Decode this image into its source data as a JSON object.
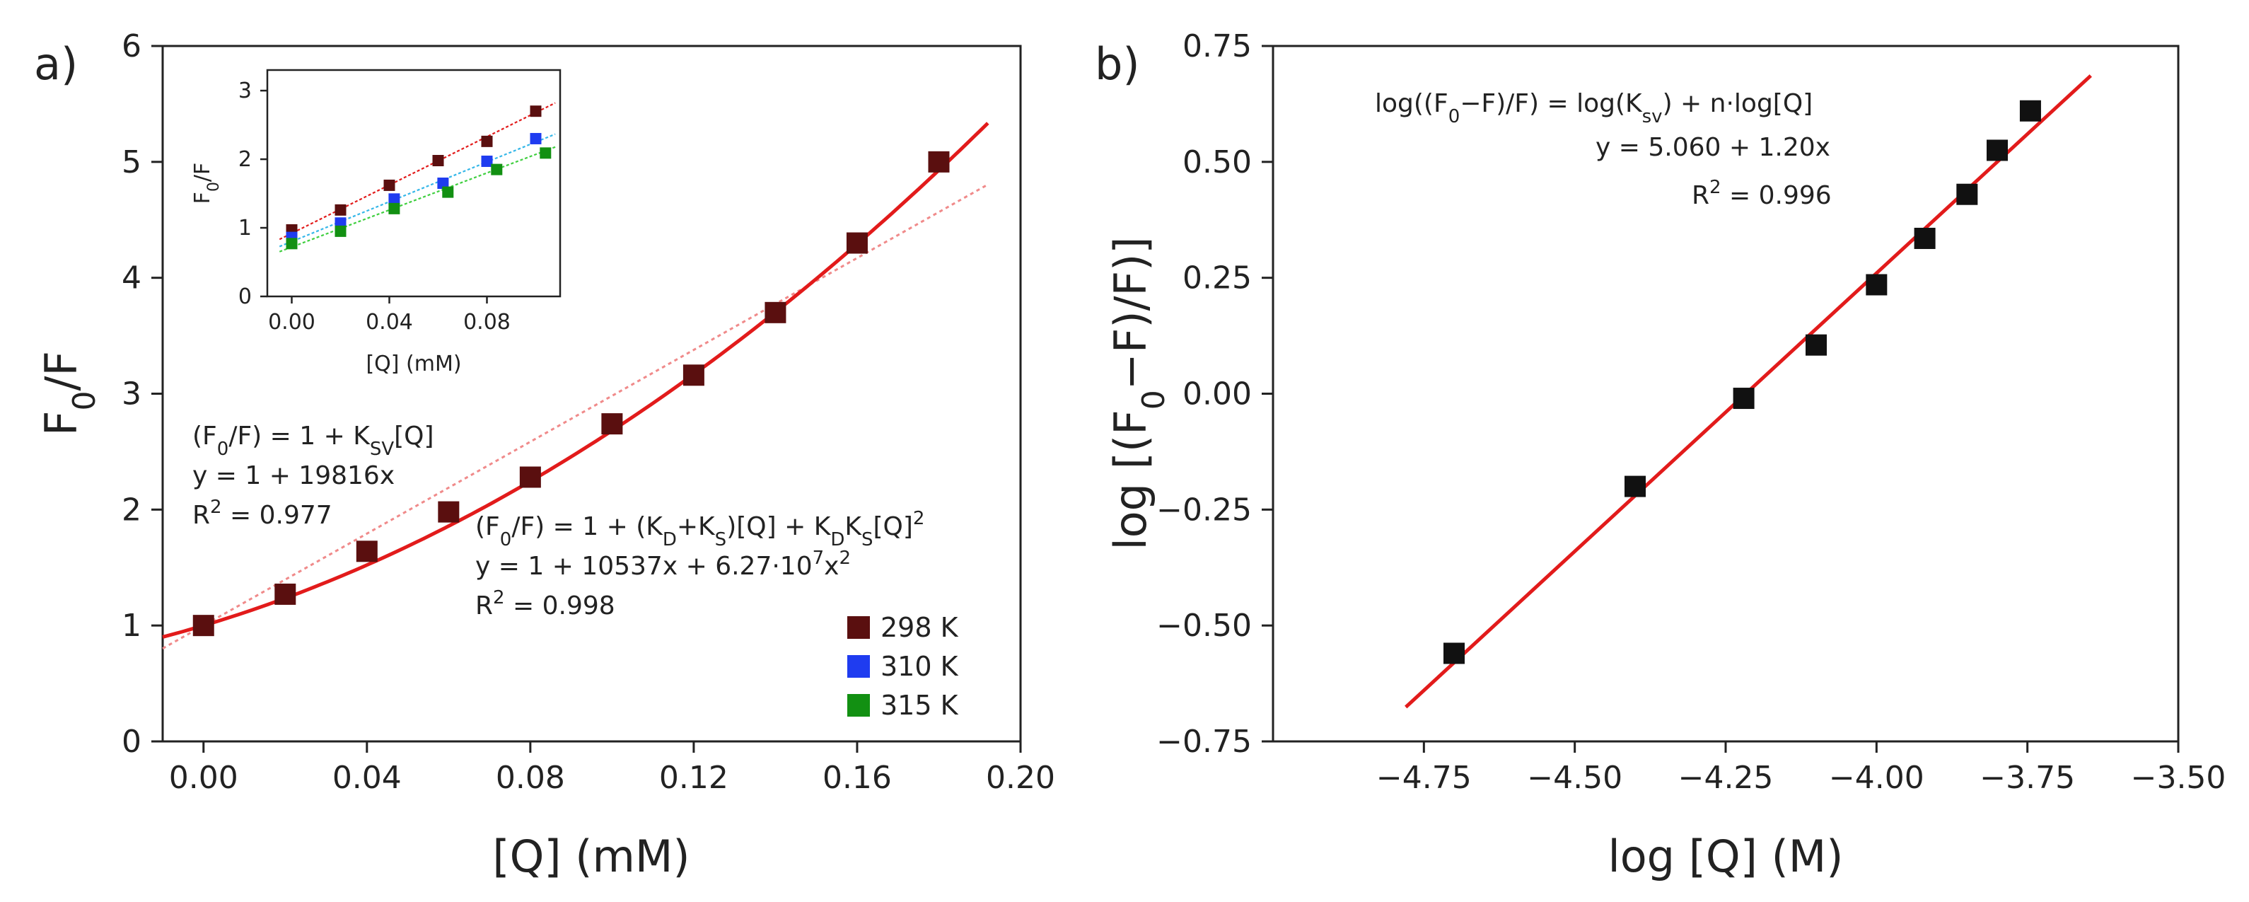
{
  "colors": {
    "fit_line": "#e21b1b",
    "linear_fit": "#f08a8a",
    "s298": "#5a0f0f",
    "s310": "#1f3cf0",
    "s315": "#129012",
    "inset_fit_310": "#35b7e8",
    "inset_fit_315": "#3fcf3f",
    "panel_b_marker": "#111111",
    "axis": "#222222"
  },
  "chart_data": [
    {
      "panel_label": "a)",
      "type": "scatter",
      "xlabel": "[Q] (mM)",
      "ylabel": "F0/F",
      "xlim": [
        -0.01,
        0.2
      ],
      "ylim": [
        0,
        6
      ],
      "x_ticks": [
        "0.00",
        "0.04",
        "0.08",
        "0.12",
        "0.16",
        "0.20"
      ],
      "y_ticks": [
        "0",
        "1",
        "2",
        "3",
        "4",
        "5",
        "6"
      ],
      "series": [
        {
          "name": "298 K",
          "x": [
            0.0,
            0.02,
            0.04,
            0.06,
            0.08,
            0.1,
            0.12,
            0.14,
            0.16,
            0.18
          ],
          "y": [
            1.0,
            1.27,
            1.64,
            1.98,
            2.28,
            2.74,
            3.16,
            3.7,
            4.3,
            5.0
          ]
        }
      ],
      "fits": [
        {
          "kind": "quadratic",
          "equation": "y = 1 + 10537x + 6.27·10⁷x²",
          "a": 1,
          "b": 10.537,
          "c": 62.7,
          "x_range": [
            -0.01,
            0.192
          ]
        },
        {
          "kind": "linear",
          "equation": "y = 1 + 19816x",
          "a": 1,
          "b": 19.816,
          "x_range": [
            -0.01,
            0.192
          ]
        }
      ],
      "annotations": {
        "sv_model": "(F₀/F) = 1 + K_SV[Q]",
        "sv_fit": "y = 1 + 19816x",
        "sv_r2": "R² = 0.977",
        "quad_model": "(F₀/F) = 1 + (K_D+K_S)[Q] + K_DK_S[Q]²",
        "quad_fit": "y = 1 + 10537x + 6.27·10⁷x²",
        "quad_r2": "R² = 0.998"
      },
      "legend": [
        "298 K",
        "310 K",
        "315 K"
      ],
      "legend_position": "bottom-right"
    },
    {
      "panel_label": "inset",
      "type": "scatter",
      "xlabel": "[Q] (mM)",
      "ylabel": "F0/F",
      "xlim": [
        -0.01,
        0.11
      ],
      "ylim": [
        0,
        3.3
      ],
      "x_ticks": [
        "0.00",
        "0.04",
        "0.08"
      ],
      "y_ticks": [
        "0",
        "1",
        "2",
        "3"
      ],
      "series": [
        {
          "name": "298 K",
          "x": [
            0.0,
            0.02,
            0.04,
            0.06,
            0.08,
            0.1
          ],
          "y": [
            0.97,
            1.26,
            1.62,
            1.98,
            2.26,
            2.7
          ]
        },
        {
          "name": "310 K",
          "x": [
            0.0,
            0.02,
            0.042,
            0.062,
            0.08,
            0.1
          ],
          "y": [
            0.86,
            1.07,
            1.42,
            1.65,
            1.97,
            2.3
          ]
        },
        {
          "name": "315 K",
          "x": [
            0.0,
            0.02,
            0.042,
            0.064,
            0.084,
            0.104
          ],
          "y": [
            0.77,
            0.95,
            1.28,
            1.52,
            1.85,
            2.09
          ]
        }
      ],
      "fits": [
        {
          "series": "298 K",
          "a": 0.92,
          "b": 17.6
        },
        {
          "series": "310 K",
          "a": 0.8,
          "b": 14.5
        },
        {
          "series": "315 K",
          "a": 0.72,
          "b": 13.5
        }
      ]
    },
    {
      "panel_label": "b)",
      "type": "scatter",
      "xlabel": "log [Q] (M)",
      "ylabel": "log [(F0−F)/F)]",
      "xlim": [
        -5.0,
        -3.5
      ],
      "ylim": [
        -0.75,
        0.75
      ],
      "x_ticks": [
        "−4.75",
        "−4.50",
        "−4.25",
        "−4.00",
        "−3.75",
        "−3.50"
      ],
      "y_ticks": [
        "−0.75",
        "−0.50",
        "−0.25",
        "0.00",
        "0.25",
        "0.50",
        "0.75"
      ],
      "series": [
        {
          "name": "data",
          "x": [
            -4.7,
            -4.4,
            -4.22,
            -4.1,
            -4.0,
            -3.92,
            -3.85,
            -3.8,
            -3.745
          ],
          "y": [
            -0.56,
            -0.2,
            -0.01,
            0.105,
            0.235,
            0.335,
            0.43,
            0.525,
            0.61
          ]
        }
      ],
      "fits": [
        {
          "kind": "linear",
          "a": 5.06,
          "b": 1.2,
          "x_range": [
            -4.78,
            -3.645
          ]
        }
      ],
      "annotations": {
        "model": "log((F₀−F)/F) = log(K_sv) + n·log[Q]",
        "fit": "y = 5.060 + 1.20x",
        "r2": "R² = 0.996"
      }
    }
  ]
}
